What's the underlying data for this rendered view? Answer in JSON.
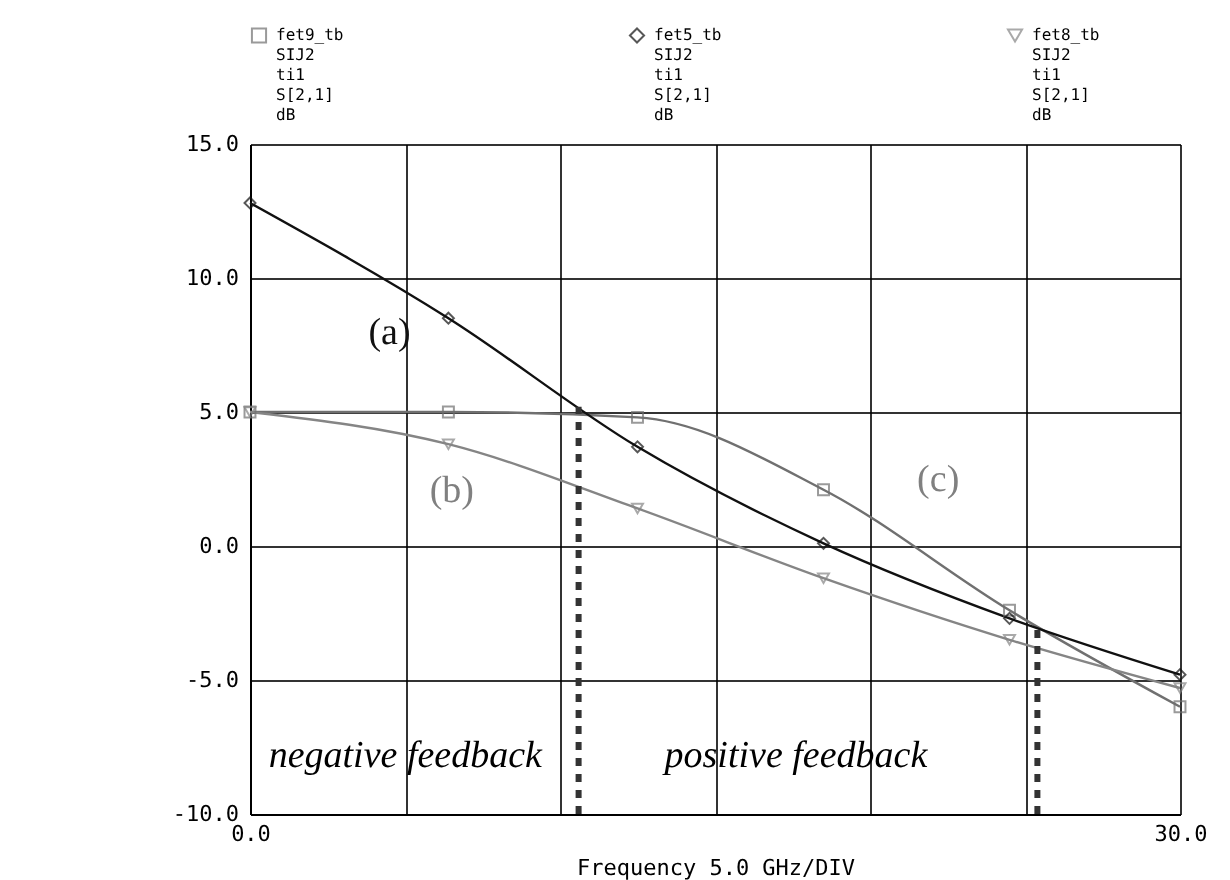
{
  "chart_data": {
    "type": "line",
    "xlabel": "Frequency 5.0 GHz/DIV",
    "x": [
      0,
      6.4,
      12.5,
      18.5,
      24.5,
      30
    ],
    "series": [
      {
        "name": "fet9_tb\nSIJ2\nti1\nS[2,1]\ndB",
        "color": "#707070",
        "marker": "square",
        "values": [
          5.0,
          5.0,
          4.8,
          2.1,
          -2.4,
          -6.0
        ]
      },
      {
        "name": "fet5_tb\nSIJ2\nti1\nS[2,1]\ndB",
        "color": "#111111",
        "marker": "diamond",
        "values": [
          12.8,
          8.5,
          3.7,
          0.1,
          -2.7,
          -4.8
        ]
      },
      {
        "name": "fet8_tb\nSIJ2\nti1\nS[2,1]\ndB",
        "color": "#858585",
        "marker": "triangle",
        "values": [
          5.0,
          3.8,
          1.4,
          -1.2,
          -3.5,
          -5.3
        ]
      }
    ],
    "xlim": [
      0,
      30
    ],
    "xticks": [
      {
        "value": 0,
        "label": "0.0"
      },
      {
        "value": 5,
        "label": null
      },
      {
        "value": 10,
        "label": null
      },
      {
        "value": 15,
        "label": null
      },
      {
        "value": 20,
        "label": null
      },
      {
        "value": 25,
        "label": null
      },
      {
        "value": 30,
        "label": "30.0"
      }
    ],
    "ylim": [
      -10,
      15
    ],
    "yticks": [
      {
        "value": -10,
        "label": "-10.0"
      },
      {
        "value": -5,
        "label": "-5.0"
      },
      {
        "value": 0,
        "label": "0.0"
      },
      {
        "value": 5,
        "label": "5.0"
      },
      {
        "value": 10,
        "label": "10.0"
      },
      {
        "value": 15,
        "label": "15.0"
      }
    ],
    "grid": true,
    "legend": "top",
    "ref_lines": [
      {
        "axis": "x",
        "value": 10.6,
        "label": null,
        "color": "#333333",
        "line_style": "dashed"
      },
      {
        "axis": "x",
        "value": 25.4,
        "label": null,
        "color": "#333333",
        "line_style": "dashed"
      }
    ],
    "annotations": [
      "(a)",
      "(b)",
      "(c)",
      "negative feedback",
      "positive feedback"
    ]
  }
}
